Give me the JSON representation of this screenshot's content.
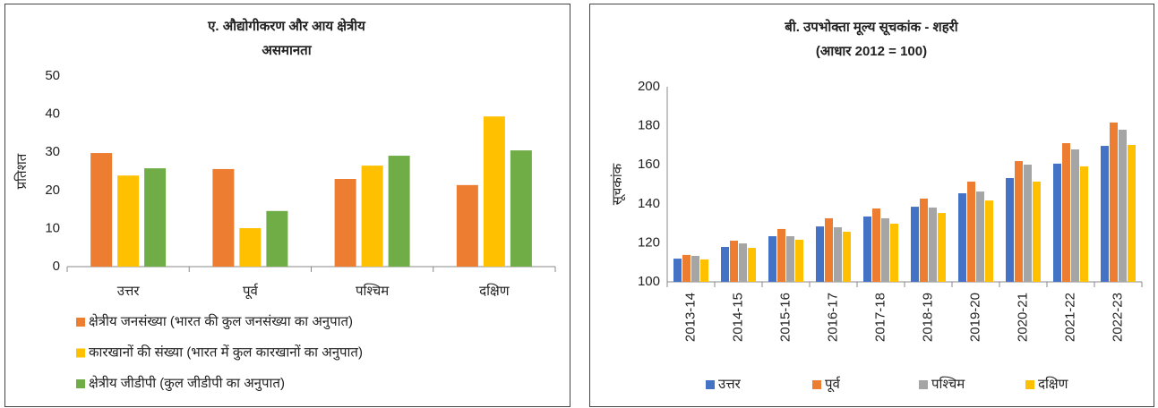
{
  "chart_data": [
    {
      "type": "bar",
      "title": [
        "ए. औद्योगीकरण और आय क्षेत्रीय",
        "असमानता"
      ],
      "ylabel": "प्रतिशत",
      "categories": [
        "उत्तर",
        "पूर्व",
        "पश्चिम",
        "दक्षिण"
      ],
      "series": [
        {
          "name": "क्षेत्रीय जनसंख्या (भारत की कुल जनसंख्या का अनुपात)",
          "color": "#ed7d31",
          "values": [
            29.8,
            25.6,
            23,
            21.4
          ]
        },
        {
          "name": "कारखानों की संख्या (भारत में कुल कारखानों का अनुपात)",
          "color": "#ffc000",
          "values": [
            23.9,
            10.1,
            26.5,
            39.4
          ]
        },
        {
          "name": "क्षेत्रीय जीडीपी (कुल जीडीपी का अनुपात)",
          "color": "#70ad47",
          "values": [
            25.8,
            14.6,
            29.1,
            30.5
          ]
        }
      ],
      "ylim": [
        0,
        50
      ],
      "yticks": [
        0,
        10,
        20,
        30,
        40,
        50
      ],
      "grid": false,
      "legend": "bottom"
    },
    {
      "type": "bar",
      "title": [
        "बी. उपभोक्ता मूल्य सूचकांक - शहरी",
        "(आधार 2012 = 100)"
      ],
      "ylabel": "सूचकांक",
      "categories": [
        "2013-14",
        "2014-15",
        "2015-16",
        "2016-17",
        "2017-18",
        "2018-19",
        "2019-20",
        "2020-21",
        "2021-22",
        "2022-23"
      ],
      "series": [
        {
          "name": "उत्तर",
          "color": "#4472c4",
          "values": [
            111.9,
            117.9,
            123.4,
            128.4,
            133.5,
            138.5,
            145.4,
            153.2,
            160.6,
            169.7
          ]
        },
        {
          "name": "पूर्व",
          "color": "#ed7d31",
          "values": [
            113.8,
            121.1,
            127.1,
            132.6,
            137.6,
            142.7,
            151.4,
            161.9,
            171.1,
            181.7
          ]
        },
        {
          "name": "पश्चिम",
          "color": "#a5a5a5",
          "values": [
            113.3,
            119.7,
            123.4,
            128,
            132.6,
            138.1,
            146.3,
            160.1,
            167.9,
            178
          ]
        },
        {
          "name": "दक्षिण",
          "color": "#ffc000",
          "values": [
            111.5,
            117.4,
            121.6,
            125.7,
            129.8,
            135.3,
            141.7,
            151.4,
            159.2,
            170.2
          ]
        }
      ],
      "ylim": [
        100,
        200
      ],
      "yticks": [
        100,
        120,
        140,
        160,
        180,
        200
      ],
      "grid": false,
      "legend": "bottom"
    }
  ]
}
